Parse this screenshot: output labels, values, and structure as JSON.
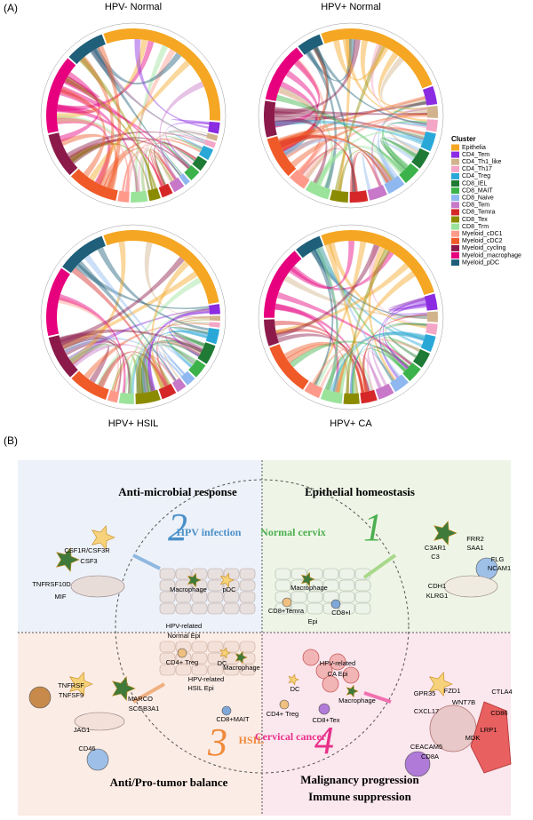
{
  "panel_a": {
    "label": "(A)",
    "charts": [
      {
        "title": "HPV- Normal"
      },
      {
        "title": "HPV+ Normal"
      },
      {
        "title": "HPV+ HSIL"
      },
      {
        "title": "HPV+ CA"
      }
    ],
    "legend": {
      "title": "Cluster",
      "items": [
        {
          "name": "Epithelia",
          "color": "#f5a623"
        },
        {
          "name": "CD4_Tem",
          "color": "#8b2be2"
        },
        {
          "name": "CD4_Th1_like",
          "color": "#d2b48c"
        },
        {
          "name": "CD4_Th17",
          "color": "#f4a6c6"
        },
        {
          "name": "CD4_Treg",
          "color": "#29a8d8"
        },
        {
          "name": "CD8_IEL",
          "color": "#1e7a34"
        },
        {
          "name": "CD8_MAIT",
          "color": "#3cb34a"
        },
        {
          "name": "CD8_Naive",
          "color": "#8fb8f0"
        },
        {
          "name": "CD8_Tem",
          "color": "#c878c8"
        },
        {
          "name": "CD8_Temra",
          "color": "#d62728"
        },
        {
          "name": "CD8_Tex",
          "color": "#8b8b00"
        },
        {
          "name": "CD8_Trm",
          "color": "#9be39b"
        },
        {
          "name": "Myeloid_cDC1",
          "color": "#ff9a8a"
        },
        {
          "name": "Myeloid_cDC2",
          "color": "#f05a28"
        },
        {
          "name": "Myeloid_cycling",
          "color": "#8b1a4a"
        },
        {
          "name": "Myeloid_macrophage",
          "color": "#e6007e"
        },
        {
          "name": "Myeloid_pDC",
          "color": "#1f5f7a"
        }
      ]
    }
  },
  "panel_b": {
    "label": "(B)",
    "headers": [
      "Anti-microbial response",
      "Epithelial homeostasis",
      "Anti/Pro-tumor balance",
      "Malignancy progression",
      "Immune suppression"
    ],
    "stages": [
      {
        "number": "1",
        "name": "Normal cervix"
      },
      {
        "number": "2",
        "name": "HPV infection"
      },
      {
        "number": "3",
        "name": "HSIL"
      },
      {
        "number": "4",
        "name": "Cervical cancer"
      }
    ],
    "labels": [
      "CSF1R/CSF3R",
      "CSF3",
      "TNFRSF10D",
      "MIF",
      "C3AR1",
      "C3",
      "FRR2",
      "SAA1",
      "FLG",
      "NCAM1",
      "CDH1",
      "KLRG1",
      "Macrophage",
      "pDC",
      "HPV-related",
      "Normal Epi",
      "Macrophage",
      "CD8+Temra",
      "CD8+I",
      "Epi",
      "CD4+ Treg",
      "DC",
      "Macrophage",
      "HPV-related",
      "HSIL Epi",
      "CD8+MAIT",
      "HPV-related",
      "CA Epi",
      "DC",
      "CD4+ Treg",
      "Macrophage",
      "CD8+Tex",
      "TNFRSF",
      "TNFSF9",
      "MARCO",
      "SCGB3A1",
      "JAG1",
      "CD46",
      "GPR35",
      "FZD1",
      "WNT7B",
      "CTLA4",
      "CXCL17",
      "CD86",
      "LRP1",
      "MDK",
      "CEACAM5",
      "CD8A"
    ]
  }
}
